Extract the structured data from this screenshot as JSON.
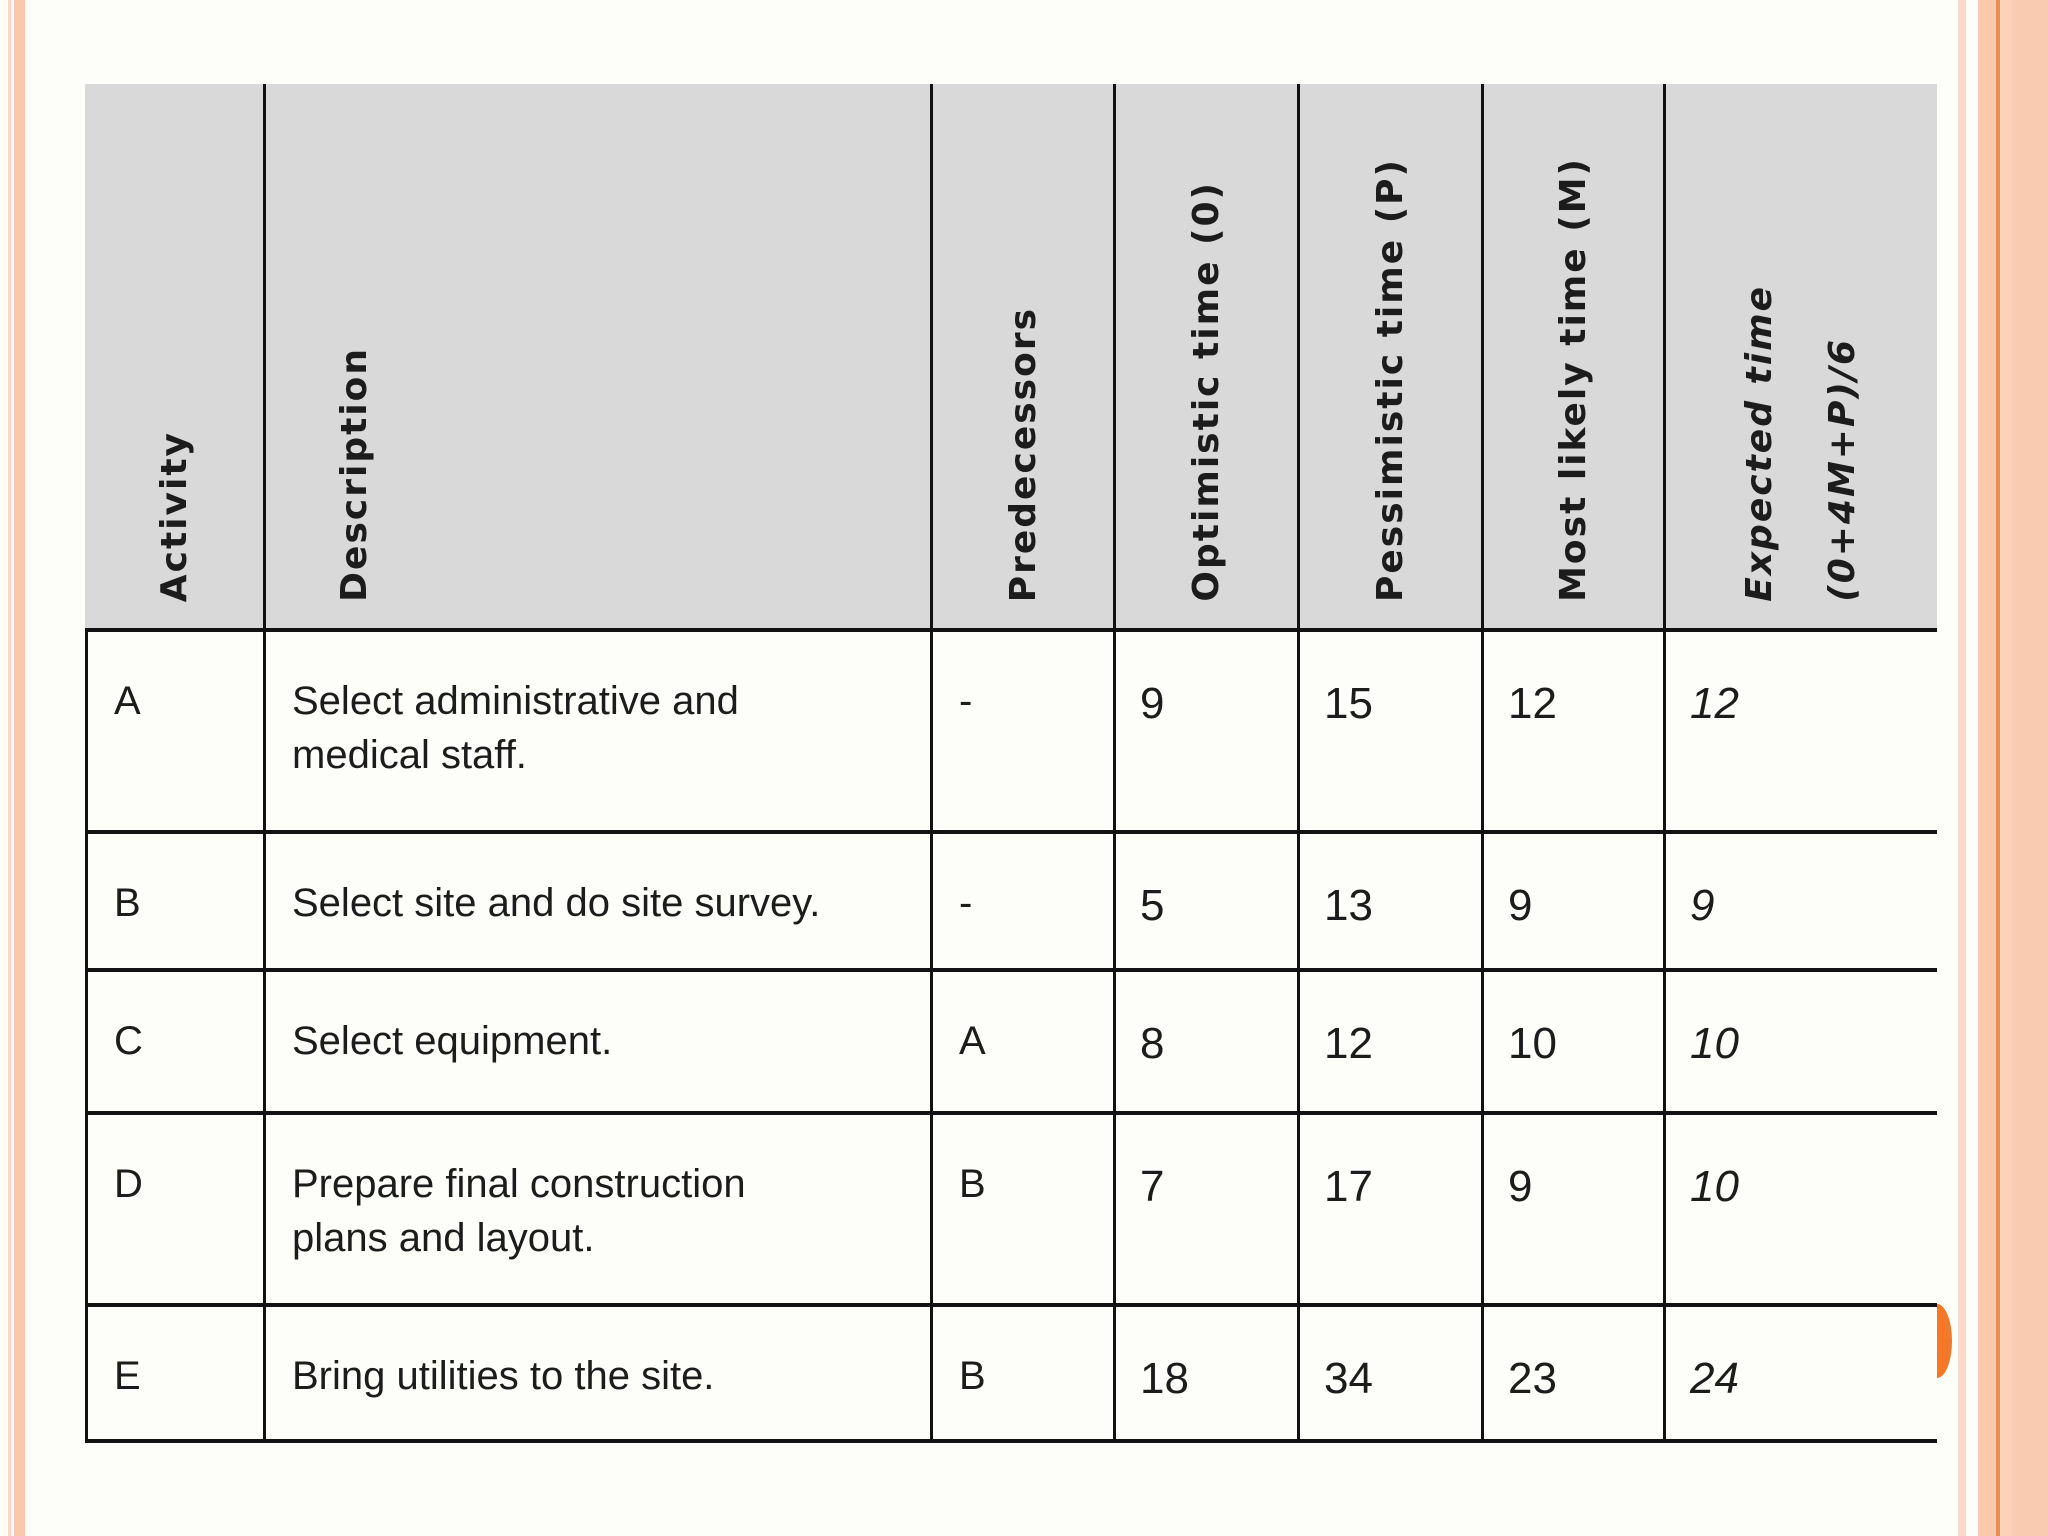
{
  "palette": {
    "bg": "#fdfefa",
    "table-line": "#121212",
    "header-fill": "#d9d9d9",
    "text": "#1c1c1c",
    "accent-orange": "#f2782a",
    "stripe-peach": "#fbc8ab",
    "stripe-peach-light": "#fcd9c7",
    "stripe-peach-deep": "#ee8c4b",
    "band-peach": "#f9ccb2",
    "band-peach-light": "#fbd2ba"
  },
  "table": {
    "headers": {
      "activity": "Activity",
      "description": "Description",
      "predecessors": "Predecessors",
      "optimistic": "Optimistic time (0)",
      "pessimistic": "Pessimistic time (P)",
      "most_likely": "Most likely time (M)",
      "expected_line1": "Expected time",
      "expected_line2": "(0+4M+P)/6"
    },
    "rows": [
      {
        "activity": "A",
        "description_lines": [
          "Select administrative and",
          "medical staff."
        ],
        "predecessors": "-",
        "optimistic": "9",
        "pessimistic": "15",
        "most_likely": "12",
        "expected": "12"
      },
      {
        "activity": "B",
        "description_lines": [
          "Select site and do site survey."
        ],
        "predecessors": "-",
        "optimistic": "5",
        "pessimistic": "13",
        "most_likely": "9",
        "expected": "9"
      },
      {
        "activity": "C",
        "description_lines": [
          "Select equipment."
        ],
        "predecessors": "A",
        "optimistic": "8",
        "pessimistic": "12",
        "most_likely": "10",
        "expected": "10"
      },
      {
        "activity": "D",
        "description_lines": [
          "Prepare final construction",
          "plans and layout."
        ],
        "predecessors": "B",
        "optimistic": "7",
        "pessimistic": "17",
        "most_likely": "9",
        "expected": "10"
      },
      {
        "activity": "E",
        "description_lines": [
          "Bring utilities to the site."
        ],
        "predecessors": "B",
        "optimistic": "18",
        "pessimistic": "34",
        "most_likely": "23",
        "expected": "24"
      }
    ]
  }
}
